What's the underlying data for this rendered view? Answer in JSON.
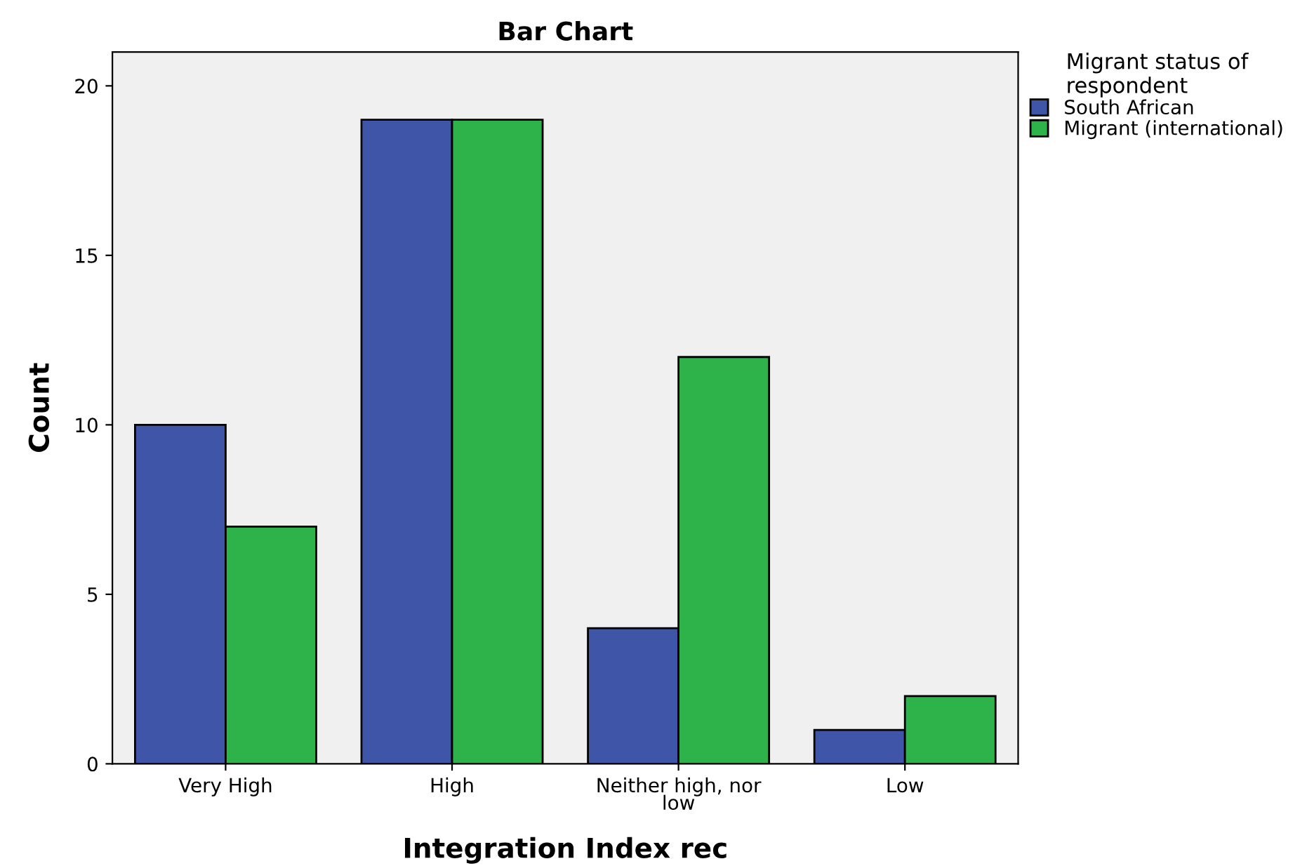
{
  "chart_data": {
    "type": "bar",
    "title": "Bar Chart",
    "xlabel": "Integration Index rec",
    "ylabel": "Count",
    "categories": [
      "Very High",
      "High",
      "Neither high, nor\nlow",
      "Low"
    ],
    "series": [
      {
        "name": "South African",
        "color": "#3f55a8",
        "values": [
          10,
          19,
          4,
          1
        ]
      },
      {
        "name": "Migrant (international)",
        "color": "#2db34a",
        "values": [
          7,
          19,
          12,
          2
        ]
      }
    ],
    "legend_title": "Migrant status of\nrespondent",
    "legend": "top right",
    "ylim": [
      0,
      21
    ],
    "yticks": [
      0,
      5,
      10,
      15,
      20
    ],
    "grid": false
  }
}
